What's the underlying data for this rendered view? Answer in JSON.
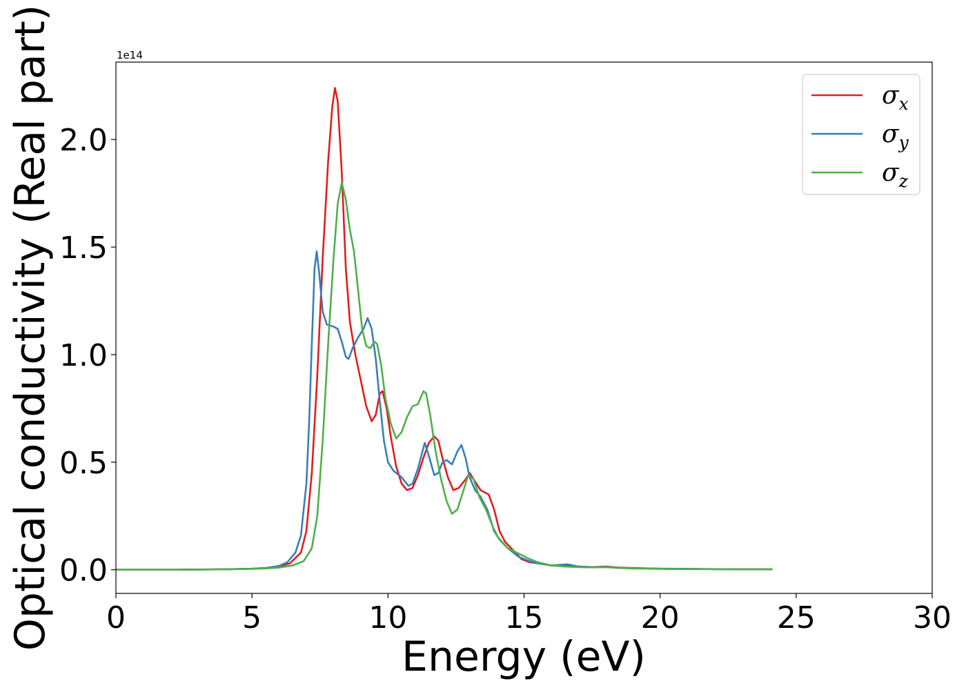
{
  "chart_data": {
    "type": "line",
    "xlabel": "Energy (eV)",
    "ylabel": "Optical conductivity (Real part)",
    "offset_text": "1e14",
    "xlim": [
      0,
      30
    ],
    "ylim": [
      -0.11,
      2.36
    ],
    "y_scale_factor": 100000000000000.0,
    "xticks": [
      0,
      5,
      10,
      15,
      20,
      25,
      30
    ],
    "xtick_labels": [
      "0",
      "5",
      "10",
      "15",
      "20",
      "25",
      "30"
    ],
    "yticks": [
      0.0,
      0.5,
      1.0,
      1.5,
      2.0
    ],
    "ytick_labels": [
      "0.0",
      "0.5",
      "1.0",
      "1.5",
      "2.0"
    ],
    "grid": false,
    "legend_position": "top-right",
    "series": [
      {
        "name": "σx",
        "legend_symbol": "σ",
        "legend_subscript": "x",
        "color": "#e41a1c",
        "points": [
          [
            0,
            0
          ],
          [
            2,
            0
          ],
          [
            4,
            0.002
          ],
          [
            5,
            0.005
          ],
          [
            5.5,
            0.008
          ],
          [
            6,
            0.015
          ],
          [
            6.4,
            0.03
          ],
          [
            6.8,
            0.08
          ],
          [
            7.0,
            0.18
          ],
          [
            7.2,
            0.45
          ],
          [
            7.4,
            0.9
          ],
          [
            7.6,
            1.45
          ],
          [
            7.8,
            1.9
          ],
          [
            7.95,
            2.15
          ],
          [
            8.05,
            2.24
          ],
          [
            8.15,
            2.18
          ],
          [
            8.3,
            1.85
          ],
          [
            8.45,
            1.4
          ],
          [
            8.6,
            1.15
          ],
          [
            8.8,
            1.0
          ],
          [
            9.0,
            0.88
          ],
          [
            9.2,
            0.76
          ],
          [
            9.4,
            0.69
          ],
          [
            9.55,
            0.72
          ],
          [
            9.7,
            0.82
          ],
          [
            9.8,
            0.83
          ],
          [
            9.95,
            0.75
          ],
          [
            10.1,
            0.62
          ],
          [
            10.3,
            0.48
          ],
          [
            10.5,
            0.4
          ],
          [
            10.7,
            0.37
          ],
          [
            10.9,
            0.38
          ],
          [
            11.1,
            0.44
          ],
          [
            11.3,
            0.52
          ],
          [
            11.5,
            0.59
          ],
          [
            11.7,
            0.62
          ],
          [
            11.85,
            0.6
          ],
          [
            12.0,
            0.52
          ],
          [
            12.2,
            0.43
          ],
          [
            12.4,
            0.37
          ],
          [
            12.6,
            0.38
          ],
          [
            12.85,
            0.42
          ],
          [
            13.0,
            0.45
          ],
          [
            13.2,
            0.41
          ],
          [
            13.4,
            0.37
          ],
          [
            13.7,
            0.35
          ],
          [
            13.9,
            0.28
          ],
          [
            14.1,
            0.18
          ],
          [
            14.3,
            0.13
          ],
          [
            14.6,
            0.09
          ],
          [
            14.9,
            0.05
          ],
          [
            15.2,
            0.035
          ],
          [
            15.5,
            0.03
          ],
          [
            16.0,
            0.02
          ],
          [
            16.5,
            0.02
          ],
          [
            17.0,
            0.015
          ],
          [
            17.5,
            0.012
          ],
          [
            18.0,
            0.015
          ],
          [
            18.5,
            0.01
          ],
          [
            19.0,
            0.008
          ],
          [
            20.0,
            0.005
          ],
          [
            21.0,
            0.004
          ],
          [
            22.0,
            0.003
          ],
          [
            23.0,
            0.002
          ],
          [
            24.1,
            0.002
          ]
        ]
      },
      {
        "name": "σy",
        "legend_symbol": "σ",
        "legend_subscript": "y",
        "color": "#377eb8",
        "points": [
          [
            0,
            0
          ],
          [
            2,
            0
          ],
          [
            4,
            0.002
          ],
          [
            5,
            0.005
          ],
          [
            5.5,
            0.008
          ],
          [
            6,
            0.018
          ],
          [
            6.3,
            0.035
          ],
          [
            6.6,
            0.08
          ],
          [
            6.8,
            0.16
          ],
          [
            7.0,
            0.4
          ],
          [
            7.1,
            0.68
          ],
          [
            7.2,
            1.05
          ],
          [
            7.3,
            1.4
          ],
          [
            7.38,
            1.48
          ],
          [
            7.47,
            1.38
          ],
          [
            7.6,
            1.2
          ],
          [
            7.75,
            1.14
          ],
          [
            8.0,
            1.13
          ],
          [
            8.15,
            1.12
          ],
          [
            8.3,
            1.06
          ],
          [
            8.45,
            0.99
          ],
          [
            8.55,
            0.98
          ],
          [
            8.7,
            1.03
          ],
          [
            8.9,
            1.08
          ],
          [
            9.1,
            1.12
          ],
          [
            9.25,
            1.17
          ],
          [
            9.4,
            1.12
          ],
          [
            9.55,
            0.98
          ],
          [
            9.7,
            0.78
          ],
          [
            9.85,
            0.6
          ],
          [
            10.0,
            0.5
          ],
          [
            10.2,
            0.46
          ],
          [
            10.5,
            0.43
          ],
          [
            10.75,
            0.39
          ],
          [
            10.9,
            0.4
          ],
          [
            11.1,
            0.47
          ],
          [
            11.35,
            0.59
          ],
          [
            11.5,
            0.53
          ],
          [
            11.7,
            0.44
          ],
          [
            11.85,
            0.45
          ],
          [
            12.0,
            0.5
          ],
          [
            12.15,
            0.51
          ],
          [
            12.35,
            0.49
          ],
          [
            12.55,
            0.55
          ],
          [
            12.7,
            0.58
          ],
          [
            12.85,
            0.52
          ],
          [
            13.0,
            0.43
          ],
          [
            13.2,
            0.37
          ],
          [
            13.4,
            0.34
          ],
          [
            13.65,
            0.28
          ],
          [
            13.9,
            0.18
          ],
          [
            14.1,
            0.14
          ],
          [
            14.4,
            0.1
          ],
          [
            14.8,
            0.06
          ],
          [
            15.2,
            0.04
          ],
          [
            15.5,
            0.03
          ],
          [
            16.0,
            0.02
          ],
          [
            16.6,
            0.025
          ],
          [
            17.0,
            0.015
          ],
          [
            17.5,
            0.012
          ],
          [
            18.0,
            0.013
          ],
          [
            18.5,
            0.009
          ],
          [
            19.0,
            0.007
          ],
          [
            20.0,
            0.005
          ],
          [
            21.0,
            0.004
          ],
          [
            22.0,
            0.003
          ],
          [
            23.0,
            0.002
          ],
          [
            24.1,
            0.002
          ]
        ]
      },
      {
        "name": "σz",
        "legend_symbol": "σ",
        "legend_subscript": "z",
        "color": "#4daf4a",
        "points": [
          [
            0,
            0
          ],
          [
            2,
            0
          ],
          [
            4,
            0.002
          ],
          [
            5,
            0.004
          ],
          [
            5.5,
            0.006
          ],
          [
            6,
            0.01
          ],
          [
            6.5,
            0.02
          ],
          [
            6.9,
            0.04
          ],
          [
            7.2,
            0.1
          ],
          [
            7.4,
            0.25
          ],
          [
            7.6,
            0.6
          ],
          [
            7.8,
            1.05
          ],
          [
            8.0,
            1.45
          ],
          [
            8.15,
            1.7
          ],
          [
            8.3,
            1.8
          ],
          [
            8.45,
            1.72
          ],
          [
            8.6,
            1.58
          ],
          [
            8.75,
            1.48
          ],
          [
            8.9,
            1.3
          ],
          [
            9.05,
            1.12
          ],
          [
            9.2,
            1.04
          ],
          [
            9.35,
            1.03
          ],
          [
            9.5,
            1.06
          ],
          [
            9.6,
            1.05
          ],
          [
            9.75,
            0.95
          ],
          [
            9.9,
            0.8
          ],
          [
            10.1,
            0.68
          ],
          [
            10.3,
            0.61
          ],
          [
            10.5,
            0.64
          ],
          [
            10.7,
            0.71
          ],
          [
            10.9,
            0.76
          ],
          [
            11.1,
            0.77
          ],
          [
            11.3,
            0.83
          ],
          [
            11.4,
            0.82
          ],
          [
            11.55,
            0.72
          ],
          [
            11.75,
            0.55
          ],
          [
            11.95,
            0.42
          ],
          [
            12.15,
            0.32
          ],
          [
            12.35,
            0.26
          ],
          [
            12.55,
            0.28
          ],
          [
            12.75,
            0.36
          ],
          [
            12.95,
            0.44
          ],
          [
            13.15,
            0.42
          ],
          [
            13.35,
            0.34
          ],
          [
            13.6,
            0.28
          ],
          [
            13.85,
            0.2
          ],
          [
            14.05,
            0.15
          ],
          [
            14.4,
            0.1
          ],
          [
            14.8,
            0.075
          ],
          [
            15.2,
            0.05
          ],
          [
            15.5,
            0.035
          ],
          [
            16.0,
            0.02
          ],
          [
            16.5,
            0.015
          ],
          [
            17.0,
            0.012
          ],
          [
            17.5,
            0.011
          ],
          [
            18.0,
            0.012
          ],
          [
            18.5,
            0.008
          ],
          [
            19.0,
            0.006
          ],
          [
            20.0,
            0.004
          ],
          [
            21.0,
            0.003
          ],
          [
            22.0,
            0.003
          ],
          [
            23.0,
            0.002
          ],
          [
            24.1,
            0.002
          ]
        ]
      }
    ]
  }
}
